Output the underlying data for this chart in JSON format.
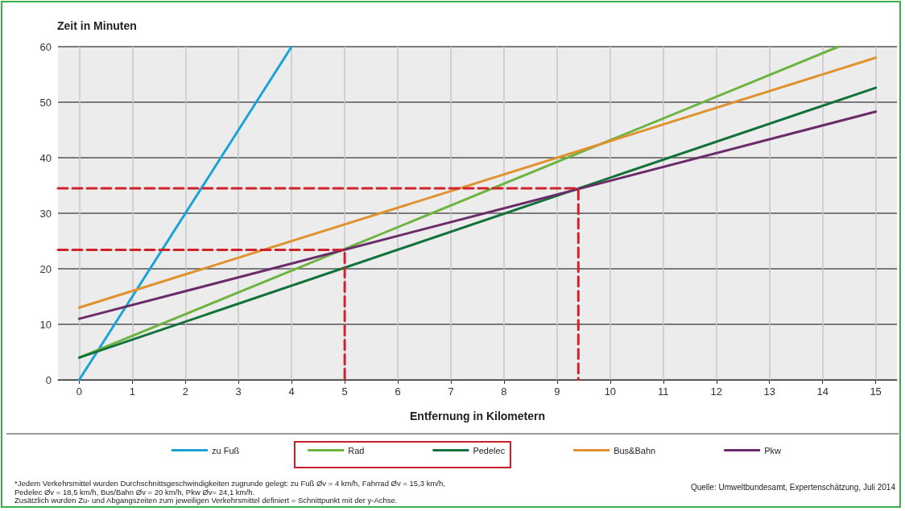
{
  "chart_data": {
    "type": "line",
    "ylabel": "Zeit in Minuten",
    "xlabel": "Entfernung in Kilometern",
    "xlim": [
      -0.4,
      15.4
    ],
    "xticks": [
      0,
      1,
      2,
      3,
      4,
      5,
      6,
      7,
      8,
      9,
      10,
      11,
      12,
      13,
      14,
      15
    ],
    "ylim": [
      0,
      60
    ],
    "yticks": [
      0,
      10,
      20,
      30,
      40,
      50,
      60
    ],
    "grid": true,
    "legend": "bottom",
    "marker": "none",
    "line_style": "solid",
    "series": [
      {
        "name": "zu Fuß",
        "color": "#1ba3d6",
        "x": [
          0,
          4
        ],
        "values": [
          0,
          60
        ]
      },
      {
        "name": "Rad",
        "color": "#6db33f",
        "x": [
          0,
          14.3
        ],
        "values": [
          4,
          60
        ]
      },
      {
        "name": "Pedelec",
        "color": "#12723a",
        "x": [
          0,
          15
        ],
        "values": [
          4,
          52.6
        ]
      },
      {
        "name": "Bus&Bahn",
        "color": "#e0922f",
        "x": [
          0,
          15
        ],
        "values": [
          13,
          58
        ]
      },
      {
        "name": "Pkw",
        "color": "#6b2c6b",
        "x": [
          0,
          15
        ],
        "values": [
          11,
          48.3
        ]
      },
      {
        "color": "#d0222c",
        "line_style": "dashed",
        "x": [
          -0.4,
          5,
          5
        ],
        "values": [
          23.4,
          23.4,
          0
        ]
      },
      {
        "color": "#d0222c",
        "line_style": "dashed",
        "x": [
          -0.4,
          9.4,
          9.4
        ],
        "values": [
          34.5,
          34.5,
          0
        ]
      }
    ],
    "annotations": [
      "*Jedem Verkehrsmittel wurden Durchschnittsgeschwindigkeiten zugrunde gelegt: zu Fuß Øv = 4 km/h, Fahrrad Øv = 15,3 km/h,",
      "Pedelec Øv = 18,5 km/h, Bus/Bahn Øv = 20 km/h, Pkw Øv= 24,1 km/h.",
      "Zusätzlich wurden Zu- und Abgangszeiten zum jeweiligen Verkehrsmittel definiert = Schnittpunkt mit der y-Achse.",
      "Quelle: Umweltbundesamt, Expertenschätzung, Juli 2014"
    ]
  }
}
